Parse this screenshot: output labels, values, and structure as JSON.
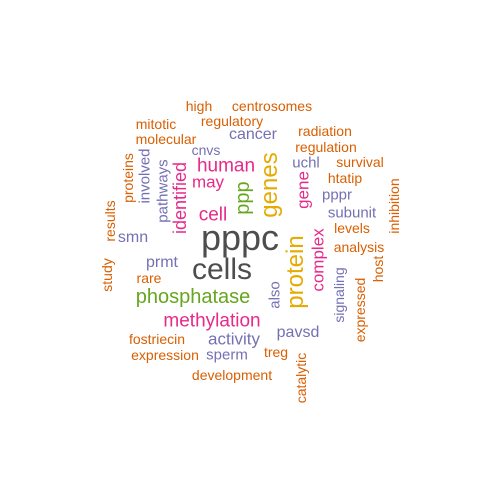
{
  "palette": {
    "dark": "#4d4d4d",
    "orange": "#d95f02",
    "purple": "#7570b3",
    "magenta": "#e7298a",
    "green": "#66a61e",
    "gold": "#e6ab02"
  },
  "words": [
    {
      "text": "pppc",
      "color": "dark",
      "vertical": false
    },
    {
      "text": "cells",
      "color": "dark",
      "vertical": false
    },
    {
      "text": "protein",
      "color": "gold",
      "vertical": true
    },
    {
      "text": "genes",
      "color": "gold",
      "vertical": true
    },
    {
      "text": "phosphatase",
      "color": "green",
      "vertical": false
    },
    {
      "text": "methylation",
      "color": "magenta",
      "vertical": false
    },
    {
      "text": "ppp",
      "color": "green",
      "vertical": true
    },
    {
      "text": "human",
      "color": "magenta",
      "vertical": false
    },
    {
      "text": "identified",
      "color": "magenta",
      "vertical": true
    },
    {
      "text": "cell",
      "color": "magenta",
      "vertical": false
    },
    {
      "text": "may",
      "color": "magenta",
      "vertical": false
    },
    {
      "text": "gene",
      "color": "magenta",
      "vertical": true
    },
    {
      "text": "complex",
      "color": "magenta",
      "vertical": true
    },
    {
      "text": "activity",
      "color": "purple",
      "vertical": false
    },
    {
      "text": "prmt",
      "color": "purple",
      "vertical": false
    },
    {
      "text": "smn",
      "color": "purple",
      "vertical": false
    },
    {
      "text": "cancer",
      "color": "purple",
      "vertical": false
    },
    {
      "text": "pavsd",
      "color": "purple",
      "vertical": false
    },
    {
      "text": "subunit",
      "color": "purple",
      "vertical": false
    },
    {
      "text": "sperm",
      "color": "purple",
      "vertical": false
    },
    {
      "text": "also",
      "color": "purple",
      "vertical": true
    },
    {
      "text": "signaling",
      "color": "purple",
      "vertical": true
    },
    {
      "text": "pathways",
      "color": "purple",
      "vertical": true
    },
    {
      "text": "involved",
      "color": "purple",
      "vertical": true
    },
    {
      "text": "uchl",
      "color": "purple",
      "vertical": false
    },
    {
      "text": "pppr",
      "color": "purple",
      "vertical": false
    },
    {
      "text": "cnvs",
      "color": "purple",
      "vertical": false
    },
    {
      "text": "high",
      "color": "orange",
      "vertical": false
    },
    {
      "text": "centrosomes",
      "color": "orange",
      "vertical": false
    },
    {
      "text": "mitotic",
      "color": "orange",
      "vertical": false
    },
    {
      "text": "regulatory",
      "color": "orange",
      "vertical": false
    },
    {
      "text": "molecular",
      "color": "orange",
      "vertical": false
    },
    {
      "text": "radiation",
      "color": "orange",
      "vertical": false
    },
    {
      "text": "regulation",
      "color": "orange",
      "vertical": false
    },
    {
      "text": "proteins",
      "color": "orange",
      "vertical": true
    },
    {
      "text": "survival",
      "color": "orange",
      "vertical": false
    },
    {
      "text": "htatip",
      "color": "orange",
      "vertical": false
    },
    {
      "text": "results",
      "color": "orange",
      "vertical": true
    },
    {
      "text": "inhibition",
      "color": "orange",
      "vertical": true
    },
    {
      "text": "levels",
      "color": "orange",
      "vertical": false
    },
    {
      "text": "analysis",
      "color": "orange",
      "vertical": false
    },
    {
      "text": "study",
      "color": "orange",
      "vertical": true
    },
    {
      "text": "rare",
      "color": "orange",
      "vertical": false
    },
    {
      "text": "host",
      "color": "orange",
      "vertical": true
    },
    {
      "text": "expressed",
      "color": "orange",
      "vertical": true
    },
    {
      "text": "fostriecin",
      "color": "orange",
      "vertical": false
    },
    {
      "text": "expression",
      "color": "orange",
      "vertical": false
    },
    {
      "text": "treg",
      "color": "orange",
      "vertical": false
    },
    {
      "text": "development",
      "color": "orange",
      "vertical": false
    },
    {
      "text": "catalytic",
      "color": "orange",
      "vertical": true
    }
  ]
}
